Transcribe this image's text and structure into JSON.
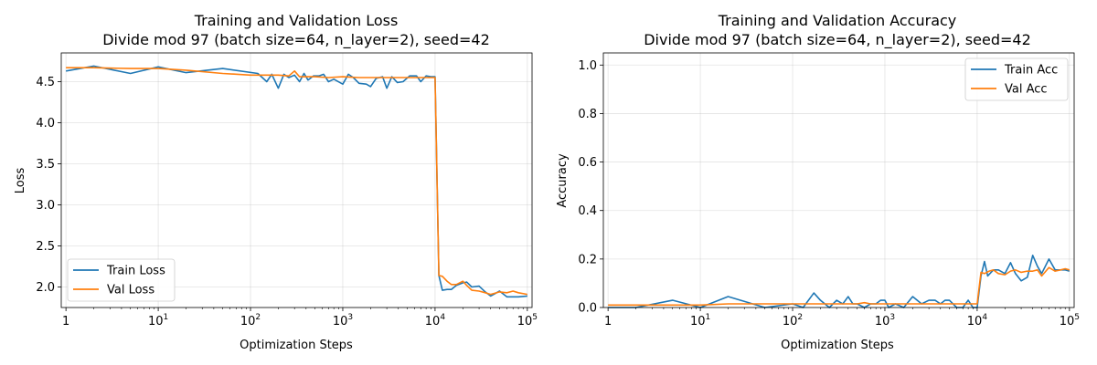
{
  "colors": {
    "train": "#1f77b4",
    "val": "#ff7f0e"
  },
  "chart_data": [
    {
      "type": "line",
      "title": "Training and Validation Loss",
      "subtitle": "Divide mod 97 (batch size=64, n_layer=2), seed=42",
      "xlabel": "Optimization Steps",
      "ylabel": "Loss",
      "xscale": "log",
      "xlim": [
        1,
        100000
      ],
      "ylim": [
        1.75,
        4.85
      ],
      "yticks": [
        2.0,
        2.5,
        3.0,
        3.5,
        4.0,
        4.5
      ],
      "ytick_labels": [
        "2.0",
        "2.5",
        "3.0",
        "3.5",
        "4.0",
        "4.5"
      ],
      "grid": true,
      "legend_position": "lower left",
      "series": [
        {
          "name": "Train Loss",
          "color": "#1f77b4",
          "x": [
            1,
            2,
            5,
            10,
            20,
            50,
            120,
            150,
            170,
            200,
            230,
            260,
            300,
            340,
            380,
            420,
            480,
            550,
            620,
            700,
            800,
            1000,
            1150,
            1300,
            1500,
            1800,
            2000,
            2300,
            2700,
            3000,
            3400,
            3900,
            4500,
            5300,
            6300,
            7000,
            8000,
            9000,
            10000,
            11000,
            12000,
            13500,
            15000,
            17000,
            20000,
            22000,
            25000,
            30000,
            35000,
            40000,
            50000,
            60000,
            70000,
            80000,
            100000
          ],
          "y": [
            4.63,
            4.69,
            4.6,
            4.68,
            4.61,
            4.66,
            4.6,
            4.5,
            4.59,
            4.42,
            4.59,
            4.55,
            4.58,
            4.5,
            4.6,
            4.52,
            4.57,
            4.57,
            4.59,
            4.5,
            4.53,
            4.47,
            4.59,
            4.55,
            4.48,
            4.47,
            4.44,
            4.54,
            4.56,
            4.42,
            4.56,
            4.49,
            4.5,
            4.57,
            4.57,
            4.5,
            4.57,
            4.56,
            4.56,
            2.14,
            1.96,
            1.97,
            1.97,
            2.02,
            2.05,
            2.06,
            2.0,
            2.01,
            1.94,
            1.89,
            1.95,
            1.88,
            1.88,
            1.88,
            1.89
          ]
        },
        {
          "name": "Val Loss",
          "color": "#ff7f0e",
          "x": [
            1,
            2,
            5,
            10,
            20,
            50,
            100,
            150,
            200,
            260,
            300,
            340,
            400,
            500,
            700,
            1000,
            1500,
            2000,
            3000,
            4000,
            5000,
            7000,
            10000,
            11000,
            12000,
            13500,
            15000,
            17000,
            20000,
            22000,
            25000,
            30000,
            35000,
            40000,
            50000,
            60000,
            70000,
            80000,
            100000
          ],
          "y": [
            4.67,
            4.67,
            4.66,
            4.66,
            4.64,
            4.6,
            4.58,
            4.58,
            4.58,
            4.57,
            4.63,
            4.56,
            4.56,
            4.56,
            4.55,
            4.56,
            4.55,
            4.55,
            4.55,
            4.55,
            4.55,
            4.55,
            4.55,
            2.14,
            2.13,
            2.07,
            2.03,
            2.03,
            2.07,
            2.02,
            1.96,
            1.95,
            1.93,
            1.91,
            1.94,
            1.93,
            1.95,
            1.93,
            1.91
          ]
        }
      ]
    },
    {
      "type": "line",
      "title": "Training and Validation Accuracy",
      "subtitle": "Divide mod 97 (batch size=64, n_layer=2), seed=42",
      "xlabel": "Optimization Steps",
      "ylabel": "Accuracy",
      "xscale": "log",
      "xlim": [
        1,
        100000
      ],
      "ylim": [
        0.0,
        1.05
      ],
      "yticks": [
        0.0,
        0.2,
        0.4,
        0.6,
        0.8,
        1.0
      ],
      "ytick_labels": [
        "0.0",
        "0.2",
        "0.4",
        "0.6",
        "0.8",
        "1.0"
      ],
      "grid": true,
      "legend_position": "upper right",
      "series": [
        {
          "name": "Train Acc",
          "color": "#1f77b4",
          "x": [
            1,
            2,
            5,
            10,
            20,
            50,
            100,
            130,
            170,
            200,
            250,
            300,
            350,
            400,
            450,
            500,
            600,
            700,
            800,
            900,
            1000,
            1100,
            1300,
            1600,
            2000,
            2500,
            3000,
            3500,
            4000,
            4500,
            5000,
            6000,
            7000,
            8000,
            9000,
            10000,
            11000,
            12000,
            13000,
            15000,
            17000,
            20000,
            23000,
            26000,
            30000,
            35000,
            40000,
            45000,
            50000,
            60000,
            70000,
            80000,
            90000,
            100000
          ],
          "y": [
            0.0,
            0.0,
            0.03,
            0.0,
            0.045,
            0.0,
            0.015,
            0.0,
            0.06,
            0.03,
            0.0,
            0.03,
            0.015,
            0.045,
            0.015,
            0.015,
            0.0,
            0.015,
            0.015,
            0.03,
            0.03,
            0.0,
            0.015,
            0.0,
            0.045,
            0.015,
            0.03,
            0.03,
            0.015,
            0.03,
            0.03,
            0.0,
            0.0,
            0.03,
            0.0,
            0.0,
            0.13,
            0.19,
            0.13,
            0.155,
            0.155,
            0.14,
            0.185,
            0.14,
            0.11,
            0.125,
            0.215,
            0.17,
            0.14,
            0.2,
            0.155,
            0.155,
            0.155,
            0.15
          ]
        },
        {
          "name": "Val Acc",
          "color": "#ff7f0e",
          "x": [
            1,
            2,
            5,
            10,
            20,
            50,
            100,
            200,
            300,
            400,
            500,
            600,
            700,
            800,
            1000,
            1500,
            2000,
            3000,
            4000,
            5000,
            7000,
            9000,
            10000,
            11000,
            12000,
            13500,
            15000,
            17000,
            20000,
            23000,
            26000,
            30000,
            35000,
            40000,
            45000,
            50000,
            60000,
            70000,
            80000,
            90000,
            100000
          ],
          "y": [
            0.01,
            0.01,
            0.01,
            0.01,
            0.015,
            0.015,
            0.015,
            0.015,
            0.015,
            0.015,
            0.015,
            0.02,
            0.015,
            0.015,
            0.015,
            0.015,
            0.015,
            0.015,
            0.015,
            0.015,
            0.015,
            0.015,
            0.015,
            0.145,
            0.14,
            0.15,
            0.155,
            0.14,
            0.135,
            0.15,
            0.155,
            0.145,
            0.15,
            0.15,
            0.155,
            0.13,
            0.165,
            0.15,
            0.155,
            0.16,
            0.155
          ]
        }
      ]
    }
  ]
}
